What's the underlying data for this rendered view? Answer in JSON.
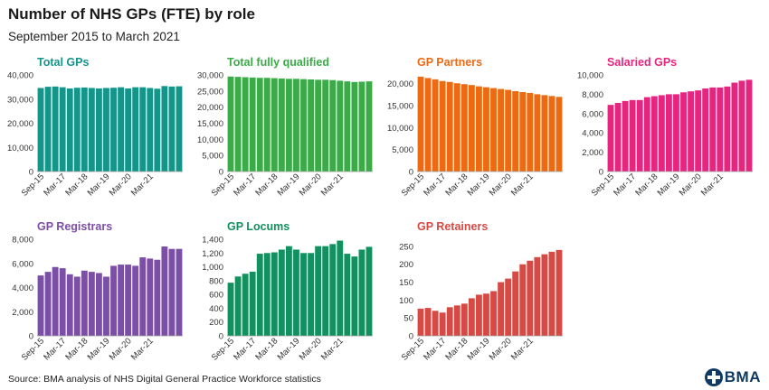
{
  "header": {
    "title": "Number of NHS GPs (FTE) by role",
    "subtitle": "September 2015 to March 2021"
  },
  "footer": {
    "source": "Source: BMA analysis of NHS Digital General Practice Workforce statistics",
    "logo_text": "BMA"
  },
  "chart_data": [
    {
      "type": "bar",
      "title": "Total GPs",
      "color": "#14958a",
      "x_tick_labels": [
        "Sep-15",
        "Mar-17",
        "Mar-18",
        "Mar-19",
        "Mar-20",
        "Mar-21"
      ],
      "yticks": [
        0,
        10000,
        20000,
        30000,
        40000
      ],
      "ytick_labels": [
        "0",
        "10,000",
        "20,000",
        "30,000",
        "40,000"
      ],
      "ylim": [
        0,
        40000
      ],
      "values": [
        34600,
        35100,
        35200,
        34900,
        34400,
        34700,
        34800,
        34600,
        34400,
        34600,
        34700,
        34900,
        34400,
        34900,
        34900,
        34600,
        34300,
        35400,
        35200,
        35300
      ]
    },
    {
      "type": "bar",
      "title": "Total fully qualified",
      "color": "#3bab48",
      "x_tick_labels": [
        "Sep-15",
        "Mar-17",
        "Mar-18",
        "Mar-19",
        "Mar-20",
        "Mar-21"
      ],
      "yticks": [
        0,
        5000,
        10000,
        15000,
        20000,
        25000,
        30000
      ],
      "ytick_labels": [
        "0",
        "5,000",
        "10,000",
        "15,000",
        "20,000",
        "25,000",
        "30,000"
      ],
      "ylim": [
        0,
        30000
      ],
      "values": [
        29500,
        29400,
        29300,
        29200,
        29100,
        29100,
        29000,
        28900,
        28800,
        28800,
        28700,
        28600,
        28500,
        28500,
        28400,
        28200,
        28000,
        27800,
        27900,
        28000
      ]
    },
    {
      "type": "bar",
      "title": "GP Partners",
      "color": "#ee6a12",
      "x_tick_labels": [
        "Sep-15",
        "Mar-17",
        "Mar-18",
        "Mar-19",
        "Mar-20",
        "Mar-21"
      ],
      "yticks": [
        0,
        5000,
        10000,
        15000,
        20000
      ],
      "ytick_labels": [
        "0",
        "5,000",
        "10,000",
        "15,000",
        "20,000"
      ],
      "ylim": [
        0,
        22000
      ],
      "values": [
        21600,
        21300,
        21000,
        20600,
        20400,
        20100,
        19900,
        19700,
        19400,
        19200,
        19000,
        18800,
        18600,
        18300,
        18100,
        17900,
        17600,
        17400,
        17200,
        17000
      ]
    },
    {
      "type": "bar",
      "title": "Salaried GPs",
      "color": "#e5257e",
      "x_tick_labels": [
        "Sep-15",
        "Mar-17",
        "Mar-18",
        "Mar-19",
        "Mar-20",
        "Mar-21"
      ],
      "yticks": [
        0,
        2000,
        4000,
        6000,
        8000,
        10000
      ],
      "ytick_labels": [
        "0",
        "2,000",
        "4,000",
        "6,000",
        "8,000",
        "10,000"
      ],
      "ylim": [
        0,
        10000
      ],
      "values": [
        6900,
        7100,
        7300,
        7400,
        7400,
        7700,
        7800,
        7900,
        8000,
        8000,
        8200,
        8300,
        8400,
        8600,
        8700,
        8700,
        8800,
        9200,
        9400,
        9500
      ]
    },
    {
      "type": "bar",
      "title": "GP Registrars",
      "color": "#7b4fa6",
      "x_tick_labels": [
        "Sep-15",
        "Mar-17",
        "Mar-18",
        "Mar-19",
        "Mar-20",
        "Mar-21"
      ],
      "yticks": [
        0,
        2000,
        4000,
        6000,
        8000
      ],
      "ytick_labels": [
        "0",
        "2,000",
        "4,000",
        "6,000",
        "8,000"
      ],
      "ylim": [
        0,
        8000
      ],
      "values": [
        5000,
        5300,
        5700,
        5600,
        5100,
        4900,
        5400,
        5300,
        5200,
        4900,
        5800,
        5900,
        5900,
        5800,
        6500,
        6400,
        6300,
        7400,
        7200,
        7200
      ]
    },
    {
      "type": "bar",
      "title": "GP Locums",
      "color": "#12915f",
      "x_tick_labels": [
        "Sep-15",
        "Mar-17",
        "Mar-18",
        "Mar-19",
        "Mar-20",
        "Mar-21"
      ],
      "yticks": [
        0,
        200,
        400,
        600,
        800,
        1000,
        1200,
        1400
      ],
      "ytick_labels": [
        "0",
        "200",
        "400",
        "600",
        "800",
        "1,000",
        "1,200",
        "1,400"
      ],
      "ylim": [
        0,
        1400
      ],
      "values": [
        770,
        860,
        900,
        930,
        1190,
        1200,
        1210,
        1250,
        1300,
        1250,
        1200,
        1200,
        1300,
        1300,
        1330,
        1380,
        1190,
        1150,
        1250,
        1290
      ]
    },
    {
      "type": "bar",
      "title": "GP Retainers",
      "color": "#d64a45",
      "x_tick_labels": [
        "Sep-15",
        "Mar-17",
        "Mar-18",
        "Mar-19",
        "Mar-20",
        "Mar-21"
      ],
      "yticks": [
        0,
        50,
        100,
        150,
        200,
        250
      ],
      "ytick_labels": [
        "0",
        "50",
        "100",
        "150",
        "200",
        "250"
      ],
      "ylim": [
        0,
        270
      ],
      "values": [
        76,
        78,
        70,
        65,
        80,
        85,
        90,
        105,
        115,
        118,
        125,
        150,
        160,
        180,
        200,
        210,
        220,
        228,
        235,
        240
      ]
    }
  ]
}
